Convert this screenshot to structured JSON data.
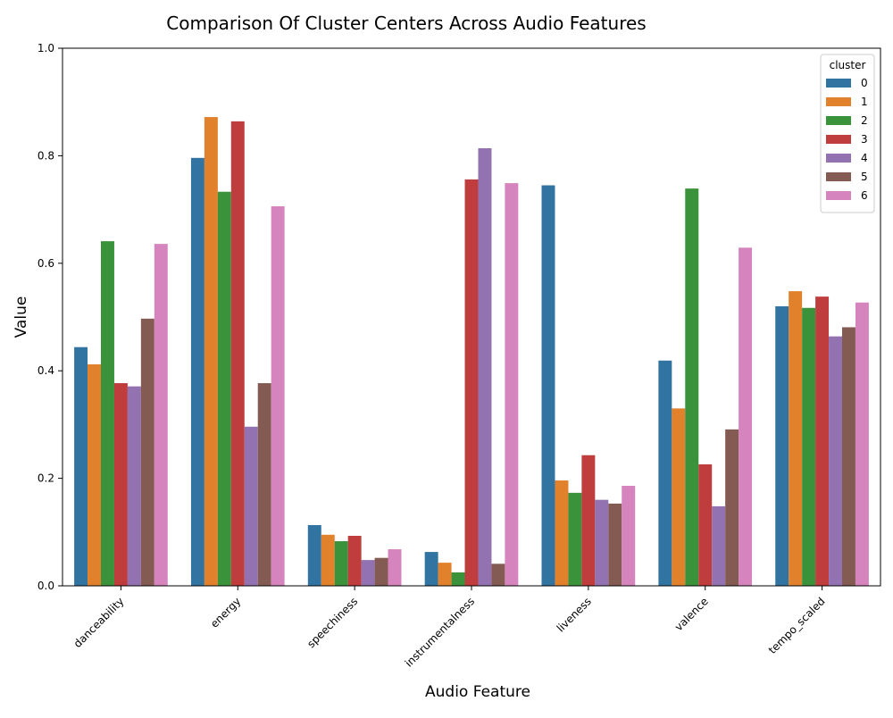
{
  "chart_data": {
    "type": "bar",
    "title": "Comparison Of Cluster Centers Across Audio Features",
    "xlabel": "Audio Feature",
    "ylabel": "Value",
    "ylim": [
      0,
      1.0
    ],
    "yticks": [
      "0.0",
      "0.2",
      "0.4",
      "0.6",
      "0.8",
      "1.0"
    ],
    "ytick_values": [
      0,
      0.2,
      0.4,
      0.6,
      0.8,
      1.0
    ],
    "categories": [
      "danceability",
      "energy",
      "speechiness",
      "instrumentalness",
      "liveness",
      "valence",
      "tempo_scaled"
    ],
    "legend": {
      "title": "cluster",
      "placement": "top-right"
    },
    "grid": false,
    "series": [
      {
        "name": "0",
        "color": "#3274a1",
        "values": [
          0.444,
          0.796,
          0.113,
          0.063,
          0.745,
          0.419,
          0.52
        ]
      },
      {
        "name": "1",
        "color": "#e1812c",
        "values": [
          0.412,
          0.872,
          0.095,
          0.043,
          0.196,
          0.33,
          0.548
        ]
      },
      {
        "name": "2",
        "color": "#3a923a",
        "values": [
          0.641,
          0.733,
          0.083,
          0.025,
          0.173,
          0.739,
          0.517
        ]
      },
      {
        "name": "3",
        "color": "#c03d3e",
        "values": [
          0.377,
          0.864,
          0.093,
          0.756,
          0.243,
          0.226,
          0.538
        ]
      },
      {
        "name": "4",
        "color": "#9372b2",
        "values": [
          0.371,
          0.296,
          0.048,
          0.814,
          0.16,
          0.148,
          0.464
        ]
      },
      {
        "name": "5",
        "color": "#845b53",
        "values": [
          0.497,
          0.377,
          0.052,
          0.041,
          0.153,
          0.291,
          0.481
        ]
      },
      {
        "name": "6",
        "color": "#d684bd",
        "values": [
          0.636,
          0.706,
          0.068,
          0.749,
          0.186,
          0.629,
          0.527
        ]
      }
    ]
  }
}
